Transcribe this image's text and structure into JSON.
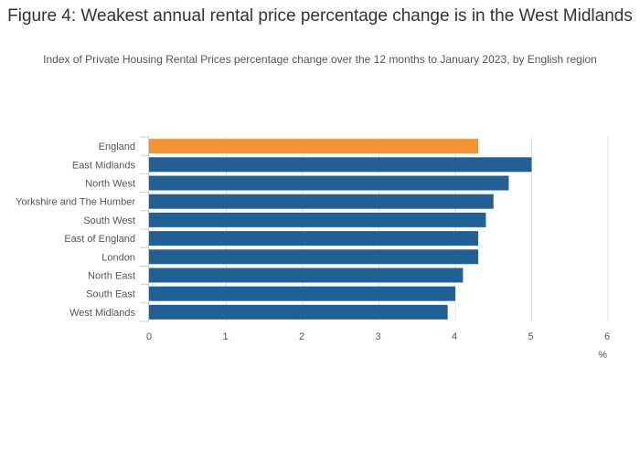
{
  "title": "Figure 4: Weakest annual rental price percentage change is in the West Midlands",
  "subtitle": "Index of Private Housing Rental Prices percentage change over the 12 months to January 2023, by English region",
  "chart_data": {
    "type": "bar",
    "orientation": "horizontal",
    "title": "Figure 4: Weakest annual rental price percentage change is in the West Midlands",
    "subtitle": "Index of Private Housing Rental Prices percentage change over the 12 months to January 2023, by English region",
    "categories": [
      "England",
      "East Midlands",
      "North West",
      "Yorkshire and The Humber",
      "South West",
      "East of England",
      "London",
      "North East",
      "South East",
      "West Midlands"
    ],
    "values": [
      4.3,
      5.0,
      4.7,
      4.5,
      4.4,
      4.3,
      4.3,
      4.1,
      4.0,
      3.9
    ],
    "highlight_category": "England",
    "colors": {
      "highlight": "#f39431",
      "default": "#206095",
      "grid": "#e2e2e2"
    },
    "xlabel": "%",
    "ylabel": "",
    "xlim": [
      0,
      6
    ],
    "xticks": [
      "0",
      "1",
      "2",
      "3",
      "4",
      "5",
      "6"
    ],
    "grid": true
  }
}
